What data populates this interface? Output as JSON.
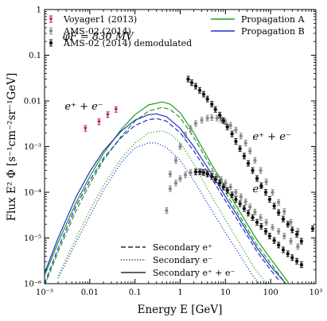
{
  "chart_data": {
    "type": "line",
    "xlabel": "Energy E [GeV]",
    "ylabel": "Flux E² Φ [s⁻¹cm⁻²sr⁻¹GeV]",
    "x_scale": "log",
    "y_scale": "log",
    "xlim": [
      0.001,
      1000
    ],
    "ylim": [
      1e-06,
      1
    ],
    "x_ticks": [
      "10⁻³",
      "0.01",
      "0.1",
      "1",
      "10",
      "100",
      "10³"
    ],
    "y_ticks": [
      "10⁻⁶",
      "10⁻⁵",
      "10⁻⁴",
      "10⁻³",
      "0.01",
      "0.1",
      "1"
    ],
    "grid": false,
    "annotations": [
      {
        "text": "φF = 830 MV",
        "x": 0.0025,
        "y": 0.22
      },
      {
        "text": "e⁺ + e⁻",
        "x": 0.0028,
        "y": 0.0065
      },
      {
        "text": "e⁺ + e⁻",
        "x": 40,
        "y": 0.0014
      },
      {
        "text": "e⁺",
        "x": 40,
        "y": 0.0001
      }
    ],
    "legend_top_left": [
      {
        "name": "Voyager1 (2013)",
        "color": "#c1114a"
      },
      {
        "name": "AMS-02 (2014)",
        "color": "#8a8a8a"
      },
      {
        "name": "AMS-02 (2014) demodulated",
        "color": "#111111"
      }
    ],
    "legend_top_right": [
      {
        "name": "Propagation A",
        "color": "#1f9a1f"
      },
      {
        "name": "Propagation B",
        "color": "#1f30cc"
      }
    ],
    "legend_bottom": [
      {
        "name": "Secondary e⁺",
        "dash": "dashed"
      },
      {
        "name": "Secondary e⁻",
        "dash": "dotted"
      },
      {
        "name": "Secondary e⁺ + e⁻",
        "dash": "solid"
      }
    ],
    "series": [
      {
        "name": "Voyager1 (2013)",
        "color": "#c1114a",
        "marker": "star",
        "points": [
          [
            0.008,
            0.0025
          ],
          [
            0.016,
            0.0035
          ],
          [
            0.025,
            0.005
          ],
          [
            0.038,
            0.0065
          ]
        ]
      },
      {
        "name": "AMS-02 (2014)",
        "color": "#8a8a8a",
        "marker": "dot",
        "points": [
          [
            0.5,
            4e-05
          ],
          [
            0.6,
            0.00025
          ],
          [
            0.8,
            0.0005
          ],
          [
            1,
            0.001
          ],
          [
            1.3,
            0.0018
          ],
          [
            1.7,
            0.0025
          ],
          [
            2.2,
            0.0032
          ],
          [
            3,
            0.0038
          ],
          [
            4,
            0.0042
          ],
          [
            5,
            0.0043
          ],
          [
            6.5,
            0.0042
          ],
          [
            8,
            0.0039
          ],
          [
            10,
            0.0035
          ],
          [
            13,
            0.0029
          ],
          [
            17,
            0.0023
          ],
          [
            22,
            0.0017
          ],
          [
            28,
            0.0012
          ],
          [
            35,
            0.0008
          ],
          [
            45,
            0.0005
          ],
          [
            60,
            0.0003
          ],
          [
            80,
            0.00017
          ],
          [
            110,
            0.0001
          ],
          [
            150,
            6e-05
          ],
          [
            200,
            3.8e-05
          ],
          [
            280,
            2.2e-05
          ],
          [
            400,
            1.4e-05
          ],
          [
            0.6,
            0.00012
          ],
          [
            0.8,
            0.00016
          ],
          [
            1,
            0.0002
          ],
          [
            1.3,
            0.00024
          ],
          [
            1.7,
            0.00027
          ],
          [
            2.2,
            0.00028
          ],
          [
            3,
            0.00028
          ],
          [
            4,
            0.00027
          ],
          [
            5,
            0.00025
          ],
          [
            6.5,
            0.00022
          ],
          [
            8,
            0.00019
          ],
          [
            10,
            0.00016
          ],
          [
            13,
            0.00013
          ],
          [
            17,
            0.0001
          ],
          [
            22,
            8e-05
          ],
          [
            28,
            6.2e-05
          ],
          [
            35,
            4.8e-05
          ],
          [
            45,
            3.7e-05
          ],
          [
            60,
            2.8e-05
          ],
          [
            80,
            2.2e-05
          ],
          [
            110,
            1.7e-05
          ],
          [
            150,
            1.4e-05
          ],
          [
            200,
            1.1e-05
          ],
          [
            280,
            8.5e-06
          ],
          [
            400,
            6.5e-06
          ]
        ]
      },
      {
        "name": "AMS-02 (2014) demodulated",
        "color": "#111111",
        "marker": "dot",
        "points": [
          [
            1.5,
            0.03
          ],
          [
            1.8,
            0.025
          ],
          [
            2.2,
            0.021
          ],
          [
            2.7,
            0.017
          ],
          [
            3.3,
            0.014
          ],
          [
            4,
            0.011
          ],
          [
            5,
            0.0085
          ],
          [
            6,
            0.0065
          ],
          [
            7.5,
            0.0049
          ],
          [
            9,
            0.0037
          ],
          [
            11,
            0.0027
          ],
          [
            14,
            0.0019
          ],
          [
            17,
            0.0013
          ],
          [
            21,
            0.0009
          ],
          [
            26,
            0.00062
          ],
          [
            32,
            0.00043
          ],
          [
            40,
            0.0003
          ],
          [
            50,
            0.0002
          ],
          [
            62,
            0.00014
          ],
          [
            78,
            0.0001
          ],
          [
            95,
            7e-05
          ],
          [
            120,
            5e-05
          ],
          [
            150,
            3.6e-05
          ],
          [
            190,
            2.6e-05
          ],
          [
            240,
            2e-05
          ],
          [
            300,
            1.5e-05
          ],
          [
            380,
            1.2e-05
          ],
          [
            480,
            8.5e-06
          ],
          [
            850,
            1.6e-05
          ],
          [
            2.2,
            0.00028
          ],
          [
            2.7,
            0.00028
          ],
          [
            3.3,
            0.00027
          ],
          [
            4,
            0.00025
          ],
          [
            5,
            0.00022
          ],
          [
            6,
            0.00019
          ],
          [
            7.5,
            0.00016
          ],
          [
            9,
            0.00013
          ],
          [
            11,
            0.00011
          ],
          [
            14,
            8.8e-05
          ],
          [
            17,
            7e-05
          ],
          [
            21,
            5.6e-05
          ],
          [
            26,
            4.4e-05
          ],
          [
            32,
            3.5e-05
          ],
          [
            40,
            2.8e-05
          ],
          [
            50,
            2.2e-05
          ],
          [
            62,
            1.8e-05
          ],
          [
            78,
            1.4e-05
          ],
          [
            95,
            1.1e-05
          ],
          [
            120,
            8.8e-06
          ],
          [
            150,
            7e-06
          ],
          [
            190,
            5.5e-06
          ],
          [
            240,
            4.5e-06
          ],
          [
            300,
            3.7e-06
          ],
          [
            380,
            3.1e-06
          ],
          [
            480,
            2.6e-06
          ]
        ]
      },
      {
        "name": "Propagation A — secondary e⁺ + e⁻",
        "color": "#1f9a1f",
        "dash": "solid",
        "points": [
          [
            0.001,
            1.5e-06
          ],
          [
            0.002,
            8e-06
          ],
          [
            0.005,
            6e-05
          ],
          [
            0.01,
            0.00022
          ],
          [
            0.02,
            0.0007
          ],
          [
            0.05,
            0.0024
          ],
          [
            0.1,
            0.005
          ],
          [
            0.2,
            0.0082
          ],
          [
            0.4,
            0.0095
          ],
          [
            0.6,
            0.0085
          ],
          [
            1,
            0.0055
          ],
          [
            2,
            0.002
          ],
          [
            5,
            0.0004
          ],
          [
            10,
            0.00013
          ],
          [
            20,
            4e-05
          ],
          [
            50,
            9e-06
          ],
          [
            100,
            3.5e-06
          ],
          [
            200,
            1.4e-06
          ],
          [
            300,
            8e-07
          ]
        ]
      },
      {
        "name": "Propagation A — secondary e⁺",
        "color": "#1f9a1f",
        "dash": "dashed",
        "points": [
          [
            0.001,
            9e-07
          ],
          [
            0.002,
            5e-06
          ],
          [
            0.005,
            4e-05
          ],
          [
            0.01,
            0.00015
          ],
          [
            0.02,
            0.0005
          ],
          [
            0.05,
            0.0017
          ],
          [
            0.1,
            0.0036
          ],
          [
            0.2,
            0.006
          ],
          [
            0.4,
            0.0072
          ],
          [
            0.6,
            0.0065
          ],
          [
            1,
            0.0043
          ],
          [
            2,
            0.0016
          ],
          [
            5,
            0.00033
          ],
          [
            10,
            0.0001
          ],
          [
            20,
            3.2e-05
          ],
          [
            50,
            7e-06
          ],
          [
            100,
            2.8e-06
          ],
          [
            200,
            1.1e-06
          ],
          [
            300,
            7e-07
          ]
        ]
      },
      {
        "name": "Propagation B — secondary e⁺ + e⁻",
        "color": "#1f30cc",
        "dash": "solid",
        "points": [
          [
            0.001,
            1.7e-06
          ],
          [
            0.002,
            1e-05
          ],
          [
            0.005,
            8e-05
          ],
          [
            0.01,
            0.00028
          ],
          [
            0.02,
            0.0008
          ],
          [
            0.05,
            0.0022
          ],
          [
            0.1,
            0.0038
          ],
          [
            0.2,
            0.005
          ],
          [
            0.3,
            0.0052
          ],
          [
            0.5,
            0.0045
          ],
          [
            1,
            0.0025
          ],
          [
            2,
            0.001
          ],
          [
            5,
            0.00025
          ],
          [
            10,
            8e-05
          ],
          [
            20,
            2.7e-05
          ],
          [
            50,
            6e-06
          ],
          [
            100,
            2.4e-06
          ],
          [
            200,
            1.1e-06
          ]
        ]
      },
      {
        "name": "Propagation B — secondary e⁺",
        "color": "#1f30cc",
        "dash": "dashed",
        "points": [
          [
            0.001,
            1e-06
          ],
          [
            0.002,
            6e-06
          ],
          [
            0.005,
            5e-05
          ],
          [
            0.01,
            0.00018
          ],
          [
            0.02,
            0.00055
          ],
          [
            0.05,
            0.0016
          ],
          [
            0.1,
            0.0029
          ],
          [
            0.2,
            0.0039
          ],
          [
            0.3,
            0.0041
          ],
          [
            0.5,
            0.0036
          ],
          [
            1,
            0.002
          ],
          [
            2,
            0.0008
          ],
          [
            5,
            0.0002
          ],
          [
            10,
            6.5e-05
          ],
          [
            20,
            2.2e-05
          ],
          [
            50,
            5e-06
          ],
          [
            100,
            2e-06
          ],
          [
            150,
            1.2e-06
          ]
        ]
      },
      {
        "name": "Propagation B — secondary e⁻",
        "color": "#1f30cc",
        "dash": "dotted",
        "points": [
          [
            0.002,
            1.3e-06
          ],
          [
            0.005,
            8e-06
          ],
          [
            0.01,
            3e-05
          ],
          [
            0.02,
            0.00011
          ],
          [
            0.05,
            0.00045
          ],
          [
            0.1,
            0.00095
          ],
          [
            0.2,
            0.0012
          ],
          [
            0.3,
            0.0012
          ],
          [
            0.5,
            0.00095
          ],
          [
            1,
            0.0005
          ],
          [
            2,
            0.00018
          ],
          [
            5,
            4e-05
          ],
          [
            10,
            1.3e-05
          ],
          [
            20,
            4.5e-06
          ],
          [
            40,
            1.5e-06
          ],
          [
            55,
            1e-06
          ]
        ]
      },
      {
        "name": "Propagation A — secondary e⁻",
        "color": "#1f9a1f",
        "dash": "dotted",
        "points": [
          [
            0.002,
            1.5e-06
          ],
          [
            0.005,
            1e-05
          ],
          [
            0.01,
            4e-05
          ],
          [
            0.02,
            0.00014
          ],
          [
            0.05,
            0.00055
          ],
          [
            0.1,
            0.0012
          ],
          [
            0.2,
            0.002
          ],
          [
            0.4,
            0.0022
          ],
          [
            0.6,
            0.0019
          ],
          [
            1,
            0.0012
          ],
          [
            2,
            0.00042
          ],
          [
            5,
            8e-05
          ],
          [
            10,
            2.5e-05
          ],
          [
            20,
            8e-06
          ],
          [
            40,
            2.5e-06
          ],
          [
            80,
            1e-06
          ]
        ]
      }
    ]
  }
}
